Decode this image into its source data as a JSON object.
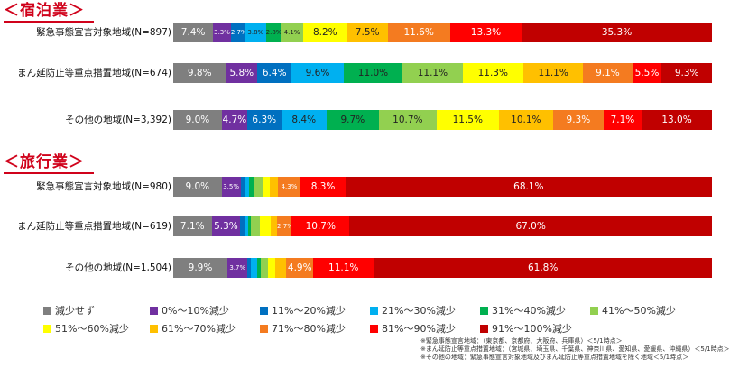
{
  "categories_legend": [
    "減少せず",
    "0%～10%減少",
    "11%～20%減少",
    "21%～30%減少",
    "31%～40%減少",
    "41%～50%減少",
    "51%～60%減少",
    "61%～70%減少",
    "71%～80%減少",
    "81%～90%減少",
    "91%～100%減少"
  ],
  "colors": [
    "#7f7f7f",
    "#7030a0",
    "#0070c0",
    "#00b0f0",
    "#00b050",
    "#92d050",
    "#ffff00",
    "#ffc000",
    "#f47b20",
    "#ff0000",
    "#c00000"
  ],
  "chart_data": [
    {
      "type": "bar",
      "stacked": "100%",
      "orientation": "horizontal",
      "title": "宿泊業",
      "categories": [
        "緊急事態宣言対象地域(N=897)",
        "まん延防止等重点措置地域(N=674)",
        "その他の地域(N=3,392)"
      ],
      "series": [
        {
          "name": "減少せず",
          "values": [
            7.4,
            9.8,
            9.0
          ]
        },
        {
          "name": "0%～10%減少",
          "values": [
            3.3,
            5.8,
            4.7
          ]
        },
        {
          "name": "11%～20%減少",
          "values": [
            2.7,
            6.4,
            6.3
          ]
        },
        {
          "name": "21%～30%減少",
          "values": [
            3.8,
            9.6,
            8.4
          ]
        },
        {
          "name": "31%～40%減少",
          "values": [
            2.8,
            11.0,
            9.7
          ]
        },
        {
          "name": "41%～50%減少",
          "values": [
            4.1,
            11.1,
            10.7
          ]
        },
        {
          "name": "51%～60%減少",
          "values": [
            8.2,
            11.3,
            11.5
          ]
        },
        {
          "name": "61%～70%減少",
          "values": [
            7.5,
            11.1,
            10.1
          ]
        },
        {
          "name": "71%～80%減少",
          "values": [
            11.6,
            9.1,
            9.3
          ]
        },
        {
          "name": "81%～90%減少",
          "values": [
            13.3,
            5.5,
            7.1
          ]
        },
        {
          "name": "91%～100%減少",
          "values": [
            35.3,
            9.3,
            13.0
          ]
        }
      ],
      "labels": [
        [
          "7.4%",
          "3.3%",
          "2.7%",
          "3.8%",
          "2.8%",
          "4.1%",
          "8.2%",
          "7.5%",
          "11.6%",
          "13.3%",
          "35.3%"
        ],
        [
          "9.8%",
          "5.8%",
          "6.4%",
          "9.6%",
          "11.0%",
          "11.1%",
          "11.3%",
          "11.1%",
          "9.1%",
          "5.5%",
          "9.3%"
        ],
        [
          "9.0%",
          "4.7%",
          "6.3%",
          "8.4%",
          "9.7%",
          "10.7%",
          "11.5%",
          "10.1%",
          "9.3%",
          "7.1%",
          "13.0%"
        ]
      ]
    },
    {
      "type": "bar",
      "stacked": "100%",
      "orientation": "horizontal",
      "title": "旅行業",
      "categories": [
        "緊急事態宣言対象地域(N=980)",
        "まん延防止等重点措置地域(N=619)",
        "その他の地域(N=1,504)"
      ],
      "series": [
        {
          "name": "減少せず",
          "values": [
            9.0,
            7.1,
            9.9
          ]
        },
        {
          "name": "0%～10%減少",
          "values": [
            3.5,
            5.3,
            3.7
          ]
        },
        {
          "name": "11%～20%減少",
          "values": [
            0.9,
            0.8,
            0.6
          ]
        },
        {
          "name": "21%～30%減少",
          "values": [
            0.7,
            0.6,
            1.1
          ]
        },
        {
          "name": "31%～40%減少",
          "values": [
            1.0,
            0.5,
            0.7
          ]
        },
        {
          "name": "41%～50%減少",
          "values": [
            1.5,
            1.7,
            1.4
          ]
        },
        {
          "name": "51%～60%減少",
          "values": [
            1.4,
            2.0,
            1.3
          ]
        },
        {
          "name": "61%～70%減少",
          "values": [
            1.4,
            1.2,
            2.0
          ]
        },
        {
          "name": "71%～80%減少",
          "values": [
            4.3,
            2.7,
            4.9
          ]
        },
        {
          "name": "81%～90%減少",
          "values": [
            8.3,
            10.7,
            11.1
          ]
        },
        {
          "name": "91%～100%減少",
          "values": [
            68.1,
            67.0,
            61.8
          ]
        }
      ],
      "labels": [
        [
          "9.0%",
          "3.5%",
          "",
          "",
          "",
          "",
          "",
          "",
          "4.3%",
          "8.3%",
          "68.1%"
        ],
        [
          "7.1%",
          "5.3%",
          "",
          "",
          "",
          "",
          "",
          "",
          "2.7%",
          "10.7%",
          "67.0%"
        ],
        [
          "9.9%",
          "3.7%",
          "",
          "",
          "",
          "",
          "",
          "",
          "4.9%",
          "11.1%",
          "61.8%"
        ]
      ]
    }
  ],
  "notes": [
    "※緊急事態宣言地域：（東京都、京都府、大阪府、兵庫県）＜5/1時点＞",
    "※まん延防止等重点措置地域：（宮城県、埼玉県、千葉県、神奈川県、愛知県、愛媛県、沖縄県）＜5/1時点＞",
    "※その他の地域：緊急事態宣言対象地域及びまん延防止等重点措置地域を除く地域＜5/1時点＞"
  ]
}
